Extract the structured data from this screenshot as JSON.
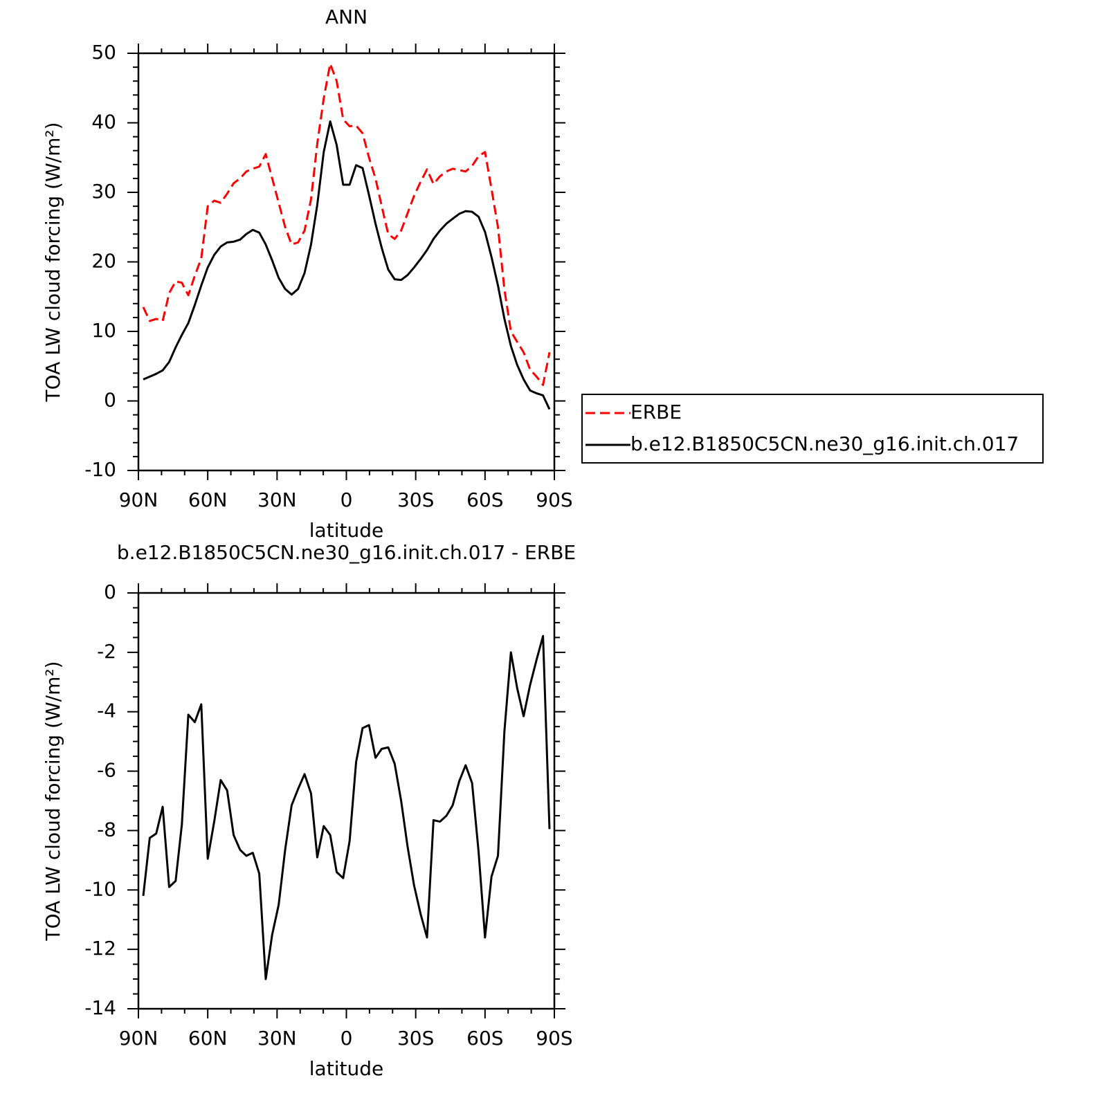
{
  "chart_data": [
    {
      "type": "line",
      "title": "ANN",
      "xlabel": "latitude",
      "ylabel": "TOA LW cloud forcing (W/m²)",
      "x": [
        87.9,
        85.1,
        82.3,
        79.5,
        76.7,
        73.9,
        71.2,
        68.4,
        65.6,
        62.8,
        60.0,
        57.2,
        54.4,
        51.6,
        48.8,
        46.0,
        43.3,
        40.5,
        37.7,
        34.9,
        32.1,
        29.3,
        26.5,
        23.7,
        20.9,
        18.1,
        15.3,
        12.6,
        9.8,
        7.0,
        4.2,
        1.4,
        -1.4,
        -4.2,
        -7.0,
        -9.8,
        -12.6,
        -15.3,
        -18.1,
        -20.9,
        -23.7,
        -26.5,
        -29.3,
        -32.1,
        -34.9,
        -37.7,
        -40.5,
        -43.3,
        -46.0,
        -48.8,
        -51.6,
        -54.4,
        -57.2,
        -60.0,
        -62.8,
        -65.6,
        -68.4,
        -71.2,
        -73.9,
        -76.7,
        -79.5,
        -82.3,
        -85.1,
        -87.9
      ],
      "series": [
        {
          "name": "ERBE",
          "color": "#ff0000",
          "style": "dashed",
          "values": [
            13.5,
            11.5,
            11.8,
            11.5,
            15.5,
            17.2,
            17.0,
            15.2,
            18.0,
            20.5,
            28.0,
            28.8,
            28.5,
            29.8,
            31.3,
            32.0,
            33.0,
            33.4,
            33.7,
            35.5,
            32.0,
            28.5,
            25.0,
            22.5,
            22.8,
            24.5,
            29.0,
            37.0,
            43.5,
            48.5,
            46.0,
            40.5,
            39.5,
            39.6,
            38.5,
            35.0,
            32.0,
            28.0,
            24.0,
            23.3,
            24.5,
            27.0,
            29.5,
            31.5,
            33.3,
            31.2,
            32.3,
            33.0,
            33.4,
            33.2,
            33.0,
            33.8,
            35.2,
            35.8,
            30.5,
            25.0,
            16.0,
            10.0,
            8.5,
            7.0,
            4.5,
            3.5,
            2.3,
            7.0
          ]
        },
        {
          "name": "b.e12.B1850C5CN.ne30_g16.init.ch.017",
          "color": "#000000",
          "style": "solid",
          "values": [
            3.1,
            3.5,
            3.9,
            4.4,
            5.6,
            7.7,
            9.5,
            11.2,
            13.8,
            16.6,
            19.2,
            21.0,
            22.2,
            22.8,
            22.9,
            23.2,
            24.0,
            24.6,
            24.2,
            22.5,
            20.2,
            17.7,
            16.1,
            15.3,
            16.1,
            18.4,
            22.5,
            28.2,
            35.8,
            40.2,
            36.8,
            31.1,
            31.1,
            33.9,
            33.5,
            29.6,
            25.5,
            22.0,
            18.9,
            17.5,
            17.4,
            18.1,
            19.2,
            20.4,
            21.7,
            23.3,
            24.5,
            25.5,
            26.2,
            26.9,
            27.3,
            27.2,
            26.5,
            24.3,
            20.7,
            16.6,
            11.8,
            7.9,
            5.2,
            3.1,
            1.5,
            1.1,
            0.8,
            -1.2
          ]
        }
      ],
      "xlim": [
        90,
        -90
      ],
      "xticks": [
        {
          "value": 90,
          "label": "90N"
        },
        {
          "value": 60,
          "label": "60N"
        },
        {
          "value": 30,
          "label": "30N"
        },
        0,
        {
          "value": -30,
          "label": "30S"
        },
        {
          "value": -60,
          "label": "60S"
        },
        {
          "value": -90,
          "label": "90S"
        }
      ],
      "xminorticks": [
        80,
        70,
        50,
        40,
        20,
        10,
        -10,
        -20,
        -40,
        -50,
        -70,
        -80
      ],
      "ylim": [
        -10,
        50
      ],
      "yticks": [
        -10,
        0,
        10,
        20,
        30,
        40,
        50
      ],
      "yminorticks": [
        -8,
        -6,
        -4,
        -2,
        2,
        4,
        6,
        8,
        12,
        14,
        16,
        18,
        22,
        24,
        26,
        28,
        32,
        34,
        36,
        38,
        42,
        44,
        46,
        48
      ],
      "legend": "right"
    },
    {
      "type": "line",
      "title": "b.e12.B1850C5CN.ne30_g16.init.ch.017 - ERBE",
      "xlabel": "latitude",
      "ylabel": "TOA LW cloud forcing (W/m²)",
      "x": [
        87.9,
        85.1,
        82.3,
        79.5,
        76.7,
        73.9,
        71.2,
        68.4,
        65.6,
        62.8,
        60.0,
        57.2,
        54.4,
        51.6,
        48.8,
        46.0,
        43.3,
        40.5,
        37.7,
        34.9,
        32.1,
        29.3,
        26.5,
        23.7,
        20.9,
        18.1,
        15.3,
        12.6,
        9.8,
        7.0,
        4.2,
        1.4,
        -1.4,
        -4.2,
        -7.0,
        -9.8,
        -12.6,
        -15.3,
        -18.1,
        -20.9,
        -23.7,
        -26.5,
        -29.3,
        -32.1,
        -34.9,
        -37.7,
        -40.5,
        -43.3,
        -46.0,
        -48.8,
        -51.6,
        -54.4,
        -57.2,
        -60.0,
        -62.8,
        -65.6,
        -68.4,
        -71.2,
        -73.9,
        -76.7,
        -79.5,
        -82.3,
        -85.1,
        -87.9
      ],
      "series": [
        {
          "color": "#000000",
          "style": "solid",
          "values": [
            -10.2,
            -8.25,
            -8.1,
            -7.2,
            -9.9,
            -9.7,
            -7.8,
            -4.1,
            -4.35,
            -3.75,
            -8.95,
            -7.7,
            -6.3,
            -6.65,
            -8.15,
            -8.65,
            -8.85,
            -8.75,
            -9.45,
            -13.0,
            -11.5,
            -10.5,
            -8.65,
            -7.15,
            -6.6,
            -6.1,
            -6.75,
            -8.9,
            -7.85,
            -8.15,
            -9.4,
            -9.6,
            -8.35,
            -5.7,
            -4.55,
            -4.45,
            -5.55,
            -5.25,
            -5.2,
            -5.75,
            -7.0,
            -8.55,
            -9.85,
            -10.8,
            -11.6,
            -7.65,
            -7.7,
            -7.5,
            -7.15,
            -6.35,
            -5.8,
            -6.4,
            -8.7,
            -11.6,
            -9.55,
            -8.85,
            -4.65,
            -2.0,
            -3.2,
            -4.15,
            -3.1,
            -2.25,
            -1.45,
            -7.95
          ]
        }
      ],
      "xlim": [
        90,
        -90
      ],
      "xticks": [
        {
          "value": 90,
          "label": "90N"
        },
        {
          "value": 60,
          "label": "60N"
        },
        {
          "value": 30,
          "label": "30N"
        },
        0,
        {
          "value": -30,
          "label": "30S"
        },
        {
          "value": -60,
          "label": "60S"
        },
        {
          "value": -90,
          "label": "90S"
        }
      ],
      "xminorticks": [
        80,
        70,
        50,
        40,
        20,
        10,
        -10,
        -20,
        -40,
        -50,
        -70,
        -80
      ],
      "ylim": [
        -14,
        0
      ],
      "yticks": [
        -14,
        -12,
        -10,
        -8,
        -6,
        -4,
        -2,
        0
      ],
      "yminorticks": [
        -13.5,
        -13,
        -12.5,
        -11.5,
        -11,
        -10.5,
        -9.5,
        -9,
        -8.5,
        -7.5,
        -7,
        -6.5,
        -5.5,
        -5,
        -4.5,
        -3.5,
        -3,
        -2.5,
        -1.5,
        -1,
        -0.5
      ]
    }
  ]
}
